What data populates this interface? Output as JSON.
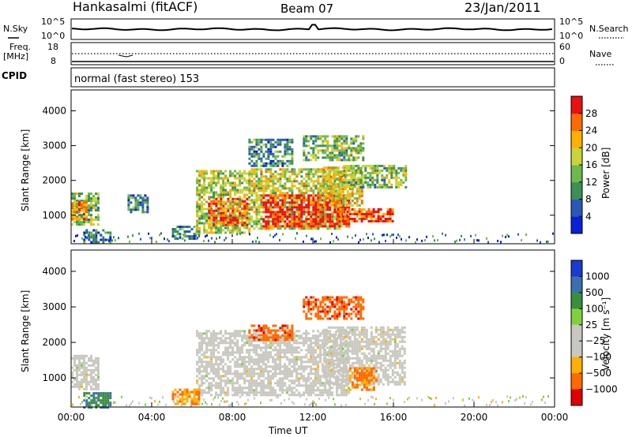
{
  "header": {
    "station": "Hankasalmi (fitACF)",
    "beam": "Beam 07",
    "date": "23/Jan/2011"
  },
  "noise_panel": {
    "left_label": "N.Sky",
    "right_label": "N.Search",
    "left_ticks": [
      "10^5",
      "10^0"
    ],
    "right_ticks": [
      "10^5",
      "10^0"
    ]
  },
  "freq_panel": {
    "left_label_1": "Freq.",
    "left_label_2": "[MHz]",
    "right_label": "Nave",
    "left_ticks": [
      "18",
      "8"
    ],
    "right_ticks": [
      "60",
      "0"
    ]
  },
  "cpid": {
    "label": "CPID",
    "mode": "normal (fast stereo) 153"
  },
  "colors": {
    "power_scale": [
      "#0a1fd8",
      "#2a57b8",
      "#3c8f55",
      "#6cba4a",
      "#c8d43a",
      "#ffb000",
      "#ff6a00",
      "#e81010"
    ],
    "velocity_scale": [
      "#e00000",
      "#ff6a00",
      "#ffb000",
      "#c8c8c0",
      "#c8c8c0",
      "#7fd040",
      "#3a8f3a",
      "#3a6fb0",
      "#1a3ad0"
    ],
    "ground_scatter": "#c8c8c0"
  },
  "chart_data": [
    {
      "type": "heatmap",
      "name": "power",
      "xlabel": "",
      "ylabel": "Slant Range [km]",
      "colorbar_label": "Power [dB]",
      "colorbar_ticks": [
        "28",
        "24",
        "20",
        "16",
        "12",
        "8",
        "4"
      ],
      "x_ticks": [
        "00:00",
        "04:00",
        "08:00",
        "12:00",
        "16:00",
        "20:00",
        "00:00"
      ],
      "y_ticks": [
        "1000",
        "2000",
        "3000",
        "4000"
      ],
      "xlim_hours": [
        0,
        24
      ],
      "ylim_km": [
        180,
        4600
      ],
      "regions": [
        {
          "t0": 0.0,
          "t1": 1.4,
          "r0": 700,
          "r1": 1650,
          "level": 0.45
        },
        {
          "t0": 0.0,
          "t1": 0.8,
          "r0": 900,
          "r1": 1400,
          "level": 0.75
        },
        {
          "t0": 0.6,
          "t1": 2.0,
          "r0": 200,
          "r1": 600,
          "level": 0.25
        },
        {
          "t0": 6.2,
          "t1": 8.8,
          "r0": 500,
          "r1": 2300,
          "level": 0.5
        },
        {
          "t0": 6.8,
          "t1": 8.8,
          "r0": 700,
          "r1": 1500,
          "level": 0.85
        },
        {
          "t0": 8.8,
          "t1": 13.5,
          "r0": 600,
          "r1": 2350,
          "level": 0.55
        },
        {
          "t0": 9.5,
          "t1": 13.8,
          "r0": 700,
          "r1": 1600,
          "level": 0.95
        },
        {
          "t0": 12.5,
          "t1": 14.5,
          "r0": 1300,
          "r1": 2400,
          "level": 0.6
        },
        {
          "t0": 13.2,
          "t1": 16.0,
          "r0": 800,
          "r1": 1200,
          "level": 0.9
        },
        {
          "t0": 13.5,
          "t1": 16.6,
          "r0": 1800,
          "r1": 2450,
          "level": 0.45
        },
        {
          "t0": 8.8,
          "t1": 11.0,
          "r0": 2400,
          "r1": 3200,
          "level": 0.3
        },
        {
          "t0": 11.5,
          "t1": 14.5,
          "r0": 2600,
          "r1": 3300,
          "level": 0.45
        },
        {
          "t0": 2.8,
          "t1": 3.8,
          "r0": 1100,
          "r1": 1600,
          "level": 0.3
        },
        {
          "t0": 5.0,
          "t1": 6.3,
          "r0": 300,
          "r1": 700,
          "level": 0.3
        }
      ]
    },
    {
      "type": "heatmap",
      "name": "velocity",
      "xlabel": "Time UT",
      "ylabel": "Slant Range [km]",
      "colorbar_label": "Velocity [m s⁻¹]",
      "colorbar_ticks": [
        "1000",
        "500",
        "100",
        "25",
        "−25",
        "−100",
        "−500",
        "−1000"
      ],
      "x_ticks": [
        "00:00",
        "04:00",
        "08:00",
        "12:00",
        "16:00",
        "20:00",
        "00:00"
      ],
      "y_ticks": [
        "1000",
        "2000",
        "3000",
        "4000"
      ],
      "xlim_hours": [
        0,
        24
      ],
      "ylim_km": [
        180,
        4600
      ],
      "regions": [
        {
          "t0": 0.0,
          "t1": 1.4,
          "r0": 700,
          "r1": 1650,
          "level": 0.0
        },
        {
          "t0": 6.2,
          "t1": 13.8,
          "r0": 500,
          "r1": 2350,
          "level": 0.0
        },
        {
          "t0": 12.5,
          "t1": 16.6,
          "r0": 800,
          "r1": 2450,
          "level": 0.0
        },
        {
          "t0": 8.8,
          "t1": 11.0,
          "r0": 2100,
          "r1": 2500,
          "level": -0.7
        },
        {
          "t0": 11.5,
          "t1": 14.5,
          "r0": 2650,
          "r1": 3300,
          "level": -0.7
        },
        {
          "t0": 13.8,
          "t1": 15.2,
          "r0": 700,
          "r1": 1300,
          "level": -0.6
        },
        {
          "t0": 5.0,
          "t1": 6.3,
          "r0": 300,
          "r1": 700,
          "level": -0.55
        },
        {
          "t0": 0.6,
          "t1": 2.0,
          "r0": 200,
          "r1": 600,
          "level": 0.5
        }
      ]
    }
  ]
}
